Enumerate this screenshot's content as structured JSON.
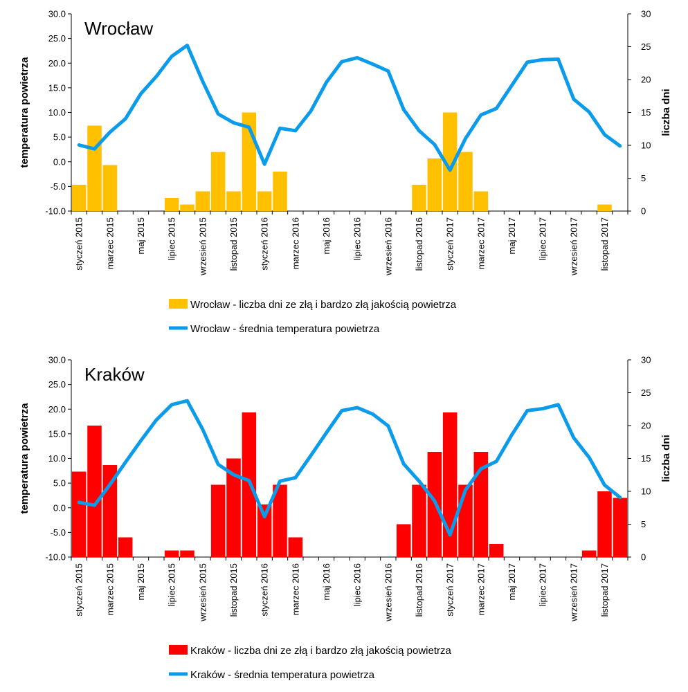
{
  "chart_data": [
    {
      "type": "bar",
      "title": "Wrocław",
      "ylabel": "temperatura powietrza",
      "y2label": "liczba dni",
      "ylim": [
        -10,
        30
      ],
      "y2lim": [
        0,
        30
      ],
      "y_ticks": [
        "30.0",
        "25.0",
        "20.0",
        "15.0",
        "10.0",
        "5.0",
        "0.0",
        "-5.0",
        "-10.0"
      ],
      "y2_ticks": [
        "30",
        "25",
        "20",
        "15",
        "10",
        "5",
        "0"
      ],
      "x_tick_labels": [
        "styczeń 2015",
        "marzec 2015",
        "maj 2015",
        "lipiec 2015",
        "wrzesień 2015",
        "listopad 2015",
        "styczeń 2016",
        "marzec 2016",
        "maj 2016",
        "lipiec 2016",
        "wrzesień 2016",
        "listopad 2016",
        "styczeń 2017",
        "marzec 2017",
        "maj 2017",
        "lipiec 2017",
        "wrzesień 2017",
        "listopad 2017"
      ],
      "bar_color": "#ffc000",
      "line_color": "#0a9bea",
      "series": [
        {
          "name": "Wrocław - liczba dni ze złą i bardzo złą jakością powietrza",
          "kind": "bar",
          "axis": "right",
          "values": [
            4,
            13,
            7,
            0,
            0,
            0,
            2,
            1,
            3,
            9,
            3,
            15,
            3,
            6,
            0,
            0,
            0,
            0,
            0,
            0,
            0,
            0,
            4,
            8,
            15,
            9,
            3,
            0,
            0,
            0,
            0,
            0,
            0,
            0,
            1,
            0
          ]
        },
        {
          "name": "Wrocław - średnia temperatura powietrza",
          "kind": "line",
          "axis": "left",
          "values": [
            3.4,
            2.6,
            6.0,
            8.7,
            13.8,
            17.3,
            21.4,
            23.6,
            16.3,
            9.7,
            7.9,
            7.0,
            -0.5,
            6.8,
            6.3,
            10.3,
            16.1,
            20.3,
            21.1,
            19.8,
            18.4,
            10.6,
            6.3,
            3.5,
            -1.7,
            4.7,
            9.5,
            10.8,
            15.5,
            20.2,
            20.7,
            20.8,
            12.7,
            10.1,
            5.5,
            3.2
          ]
        }
      ]
    },
    {
      "type": "bar",
      "title": "Kraków",
      "ylabel": "temperatura powietrza",
      "y2label": "liczba dni",
      "ylim": [
        -10,
        30
      ],
      "y2lim": [
        0,
        30
      ],
      "y_ticks": [
        "30.0",
        "25.0",
        "20.0",
        "15.0",
        "10.0",
        "5.0",
        "0.0",
        "-5.0",
        "-10.0"
      ],
      "y2_ticks": [
        "30",
        "25",
        "20",
        "15",
        "10",
        "5",
        "0"
      ],
      "x_tick_labels": [
        "styczeń 2015",
        "marzec 2015",
        "maj 2015",
        "lipiec 2015",
        "wrzesień 2015",
        "listopad 2015",
        "styczeń 2016",
        "marzec 2016",
        "maj 2016",
        "lipiec 2016",
        "wrzesień 2016",
        "listopad 2016",
        "styczeń 2017",
        "marzec 2017",
        "maj 2017",
        "lipiec 2017",
        "wrzesień 2017",
        "listopad 2017"
      ],
      "bar_color": "#ff0000",
      "line_color": "#0a9bea",
      "series": [
        {
          "name": "Kraków - liczba dni ze złą i bardzo złą jakością powietrza",
          "kind": "bar",
          "axis": "right",
          "values": [
            13,
            20,
            14,
            3,
            0,
            0,
            1,
            1,
            0,
            11,
            15,
            22,
            8,
            11,
            3,
            0,
            0,
            0,
            0,
            0,
            0,
            5,
            11,
            16,
            22,
            11,
            16,
            2,
            0,
            0,
            0,
            0,
            0,
            1,
            10,
            9
          ]
        },
        {
          "name": "Kraków - średnia temperatura powietrza",
          "kind": "line",
          "axis": "left",
          "values": [
            1.1,
            0.5,
            4.7,
            9.2,
            13.6,
            17.8,
            20.9,
            21.7,
            15.9,
            8.8,
            6.7,
            5.5,
            -1.8,
            5.4,
            6.1,
            10.6,
            15.2,
            19.7,
            20.3,
            19.0,
            16.6,
            8.9,
            5.4,
            1.4,
            -5.5,
            3.6,
            7.9,
            9.4,
            14.8,
            19.7,
            20.1,
            20.9,
            14.2,
            10.2,
            4.6,
            2.1
          ]
        }
      ]
    }
  ]
}
